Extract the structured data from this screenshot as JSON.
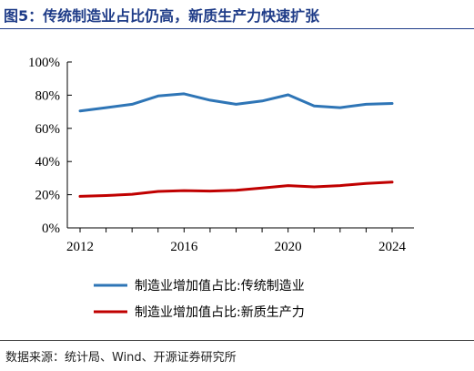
{
  "figure": {
    "title": "图5：传统制造业占比仍高，新质生产力快速扩张",
    "source": "数据来源：统计局、Wind、开源证券研究所"
  },
  "colors": {
    "title": "#1f3c88",
    "series1": "#2e75b6",
    "series2": "#c00000",
    "axis": "#000000"
  },
  "chart_data": {
    "type": "line",
    "title": "",
    "xlabel": "",
    "ylabel": "",
    "x": [
      2012,
      2013,
      2014,
      2015,
      2016,
      2017,
      2018,
      2019,
      2020,
      2021,
      2022,
      2023,
      2024
    ],
    "x_ticks": [
      2012,
      2016,
      2020,
      2024
    ],
    "x_tick_labels": [
      "2012",
      "2016",
      "2020",
      "2024"
    ],
    "ylim": [
      0,
      100
    ],
    "y_ticks": [
      0,
      20,
      40,
      60,
      80,
      100
    ],
    "y_tick_labels": [
      "0%",
      "20%",
      "40%",
      "60%",
      "80%",
      "100%"
    ],
    "grid": false,
    "legend_position": "bottom",
    "series": [
      {
        "name": "制造业增加值占比:传统制造业",
        "color": "#2e75b6",
        "values": [
          70.5,
          72.5,
          74.5,
          79.5,
          80.8,
          77,
          74.5,
          76.5,
          80.2,
          73.5,
          72.5,
          74.5,
          75
        ]
      },
      {
        "name": "制造业增加值占比:新质生产力",
        "color": "#c00000",
        "values": [
          19,
          19.5,
          20.3,
          22,
          22.5,
          22.2,
          22.7,
          24,
          25.5,
          24.7,
          25.5,
          26.8,
          27.6
        ]
      }
    ]
  }
}
